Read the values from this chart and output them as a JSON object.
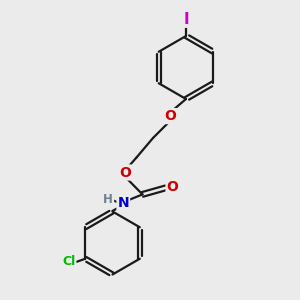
{
  "bg_color": "#ebebeb",
  "bond_color": "#1a1a1a",
  "bond_width": 1.6,
  "atom_colors": {
    "I": "#cc00cc",
    "O": "#cc0000",
    "N": "#0000cc",
    "Cl": "#00bb00",
    "H": "#708090",
    "C": "#1a1a1a"
  },
  "font_size_atoms": 10,
  "font_size_H": 8.5,
  "font_size_Cl": 9
}
